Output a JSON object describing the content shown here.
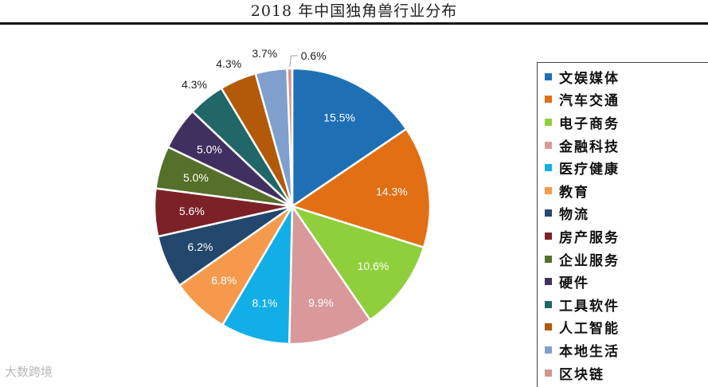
{
  "chart_data": {
    "type": "pie",
    "title": "2018 年中国独角兽行业分布",
    "slices": [
      {
        "label": "文娱媒体",
        "value": 15.5,
        "display": "15.5%",
        "color": "#1f6fb5"
      },
      {
        "label": "汽车交通",
        "value": 14.3,
        "display": "14.3%",
        "color": "#e26f13"
      },
      {
        "label": "电子商务",
        "value": 10.6,
        "display": "10.6%",
        "color": "#8fcf3c"
      },
      {
        "label": "金融科技",
        "value": 9.9,
        "display": "9.9%",
        "color": "#d9999a"
      },
      {
        "label": "医疗健康",
        "value": 8.1,
        "display": "8.1%",
        "color": "#12aee8"
      },
      {
        "label": "教育",
        "value": 6.8,
        "display": "6.8%",
        "color": "#f59a4c"
      },
      {
        "label": "物流",
        "value": 6.2,
        "display": "6.2%",
        "color": "#24476e"
      },
      {
        "label": "房产服务",
        "value": 5.6,
        "display": "5.6%",
        "color": "#7c2227"
      },
      {
        "label": "企业服务",
        "value": 5.0,
        "display": "5.0%",
        "color": "#55702a"
      },
      {
        "label": "硬件",
        "value": 5.0,
        "display": "5.0%",
        "color": "#40305f"
      },
      {
        "label": "工具软件",
        "value": 4.3,
        "display": "4.3%",
        "color": "#216668"
      },
      {
        "label": "人工智能",
        "value": 4.3,
        "display": "4.3%",
        "color": "#b2590a"
      },
      {
        "label": "本地生活",
        "value": 3.7,
        "display": "3.7%",
        "color": "#7f9fcd"
      },
      {
        "label": "区块链",
        "value": 0.6,
        "display": "0.6%",
        "color": "#d2958c"
      }
    ],
    "legend_position": "right"
  },
  "watermark": "大数跨境"
}
